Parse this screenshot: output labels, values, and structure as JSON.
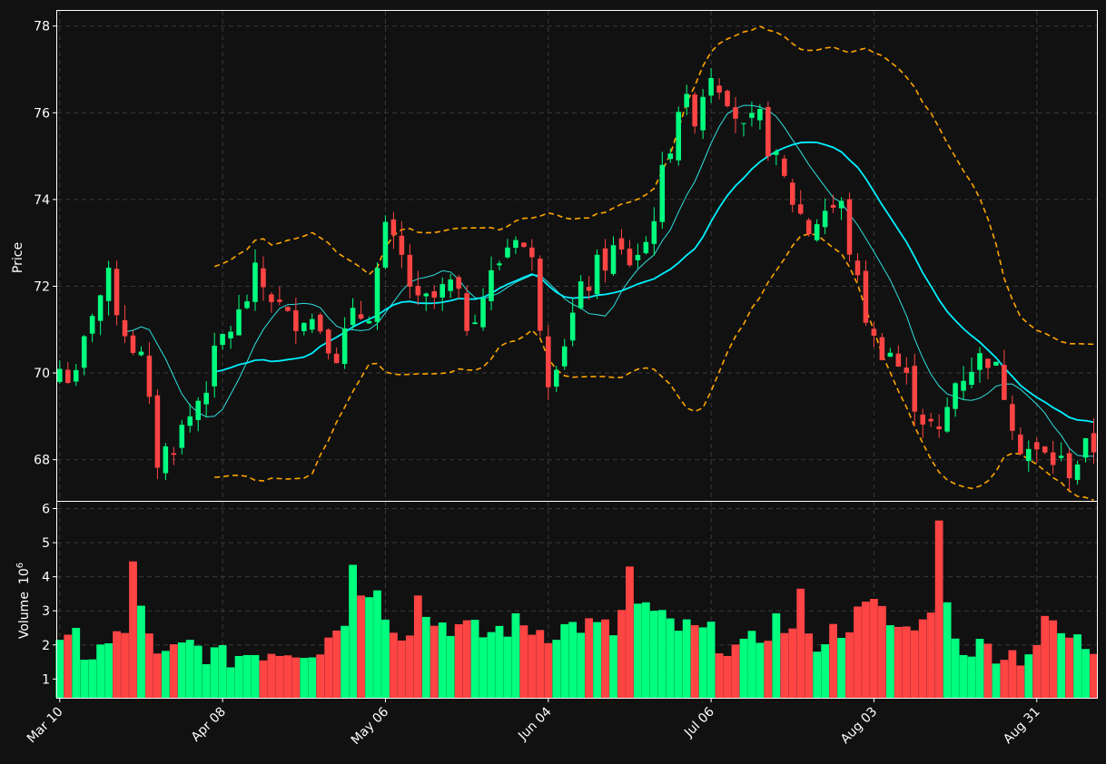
{
  "chart_data": {
    "type": "candlestick",
    "colors": {
      "background": "#111111",
      "up": "#00ff7f",
      "down": "#ff4444",
      "bollinger": "#ffa500",
      "ma_fast": "#30e0e0",
      "ma_slow": "#00f0ff",
      "grid": "#3a3a3a",
      "text": "#ffffff"
    },
    "grid": true,
    "x_ticks": [
      {
        "label": "Mar 10",
        "index": 0
      },
      {
        "label": "Apr 08",
        "index": 20
      },
      {
        "label": "May 06",
        "index": 40
      },
      {
        "label": "Jun 04",
        "index": 60
      },
      {
        "label": "Jul 06",
        "index": 80
      },
      {
        "label": "Aug 03",
        "index": 100
      },
      {
        "label": "Aug 31",
        "index": 120
      }
    ],
    "price_panel": {
      "ylabel": "Price",
      "ylim": [
        67.05,
        78.35
      ],
      "yticks": [
        "68",
        "70",
        "72",
        "74",
        "76",
        "78"
      ],
      "ytick_values": [
        68,
        70,
        72,
        74,
        76,
        78
      ]
    },
    "volume_panel": {
      "ylabel": "Volume",
      "ylabel_exponent": "10",
      "ylabel_exponent_power": "6",
      "ylim": [
        0.45,
        6.2
      ],
      "yticks": [
        "1",
        "2",
        "3",
        "4",
        "5",
        "6"
      ],
      "ytick_values": [
        1,
        2,
        3,
        4,
        5,
        6
      ]
    },
    "price_anchors": [
      [
        0,
        70.1
      ],
      [
        2,
        69.8
      ],
      [
        4,
        71.5
      ],
      [
        6,
        72.1
      ],
      [
        8,
        71.0
      ],
      [
        10,
        70.3
      ],
      [
        12,
        68.0
      ],
      [
        14,
        68.4
      ],
      [
        16,
        69.0
      ],
      [
        18,
        69.8
      ],
      [
        20,
        70.8
      ],
      [
        22,
        71.3
      ],
      [
        24,
        72.2
      ],
      [
        26,
        71.8
      ],
      [
        28,
        71.2
      ],
      [
        30,
        71.4
      ],
      [
        32,
        71.1
      ],
      [
        34,
        70.5
      ],
      [
        36,
        71.2
      ],
      [
        38,
        71.5
      ],
      [
        40,
        73.2
      ],
      [
        42,
        72.6
      ],
      [
        44,
        71.5
      ],
      [
        46,
        71.7
      ],
      [
        48,
        72.0
      ],
      [
        50,
        71.2
      ],
      [
        52,
        71.8
      ],
      [
        54,
        72.6
      ],
      [
        56,
        73.3
      ],
      [
        58,
        72.5
      ],
      [
        60,
        70.0
      ],
      [
        62,
        70.8
      ],
      [
        64,
        71.8
      ],
      [
        66,
        72.4
      ],
      [
        68,
        72.8
      ],
      [
        70,
        72.6
      ],
      [
        72,
        73.0
      ],
      [
        74,
        74.5
      ],
      [
        76,
        76.2
      ],
      [
        78,
        76.0
      ],
      [
        80,
        77.0
      ],
      [
        82,
        76.5
      ],
      [
        84,
        75.5
      ],
      [
        86,
        75.8
      ],
      [
        88,
        74.8
      ],
      [
        90,
        74.0
      ],
      [
        92,
        73.3
      ],
      [
        94,
        73.8
      ],
      [
        96,
        73.8
      ],
      [
        98,
        72.0
      ],
      [
        100,
        70.7
      ],
      [
        102,
        70.5
      ],
      [
        104,
        69.8
      ],
      [
        106,
        69.0
      ],
      [
        108,
        68.5
      ],
      [
        110,
        69.8
      ],
      [
        112,
        70.2
      ],
      [
        114,
        70.4
      ],
      [
        116,
        69.6
      ],
      [
        118,
        68.4
      ],
      [
        120,
        68.1
      ],
      [
        122,
        68.0
      ],
      [
        124,
        67.8
      ],
      [
        126,
        68.2
      ],
      [
        127,
        68.3
      ]
    ],
    "volume_anchors": [
      [
        0,
        2.1
      ],
      [
        4,
        1.7
      ],
      [
        8,
        2.3
      ],
      [
        10,
        3.5
      ],
      [
        12,
        1.5
      ],
      [
        16,
        2.0
      ],
      [
        20,
        1.6
      ],
      [
        24,
        1.8
      ],
      [
        28,
        1.9
      ],
      [
        32,
        1.9
      ],
      [
        36,
        3.2
      ],
      [
        38,
        3.9
      ],
      [
        40,
        3.0
      ],
      [
        42,
        2.4
      ],
      [
        44,
        2.8
      ],
      [
        48,
        2.6
      ],
      [
        52,
        2.3
      ],
      [
        56,
        2.6
      ],
      [
        60,
        2.4
      ],
      [
        64,
        2.6
      ],
      [
        68,
        2.4
      ],
      [
        70,
        3.4
      ],
      [
        72,
        2.9
      ],
      [
        76,
        2.5
      ],
      [
        80,
        2.3
      ],
      [
        82,
        2.0
      ],
      [
        84,
        1.8
      ],
      [
        88,
        2.7
      ],
      [
        92,
        2.0
      ],
      [
        96,
        2.5
      ],
      [
        100,
        3.2
      ],
      [
        102,
        2.6
      ],
      [
        104,
        2.4
      ],
      [
        106,
        3.1
      ],
      [
        108,
        2.5
      ],
      [
        110,
        2.0
      ],
      [
        114,
        1.9
      ],
      [
        118,
        1.7
      ],
      [
        122,
        2.4
      ],
      [
        127,
        1.9
      ]
    ],
    "volume_spikes": [
      [
        0,
        2.15
      ],
      [
        1,
        2.3
      ],
      [
        2,
        2.5
      ],
      [
        9,
        4.45
      ],
      [
        10,
        3.15
      ],
      [
        36,
        4.35
      ],
      [
        37,
        3.45
      ],
      [
        38,
        3.4
      ],
      [
        44,
        3.45
      ],
      [
        70,
        4.3
      ],
      [
        72,
        3.25
      ],
      [
        91,
        3.65
      ],
      [
        100,
        3.35
      ],
      [
        106,
        2.75
      ],
      [
        107,
        2.95
      ],
      [
        108,
        5.65
      ],
      [
        109,
        3.25
      ],
      [
        121,
        2.85
      ]
    ],
    "n_bars": 128,
    "ma_fast_window": 9,
    "ma_slow_window": 20,
    "bollinger_window": 20,
    "bollinger_k": 2
  }
}
